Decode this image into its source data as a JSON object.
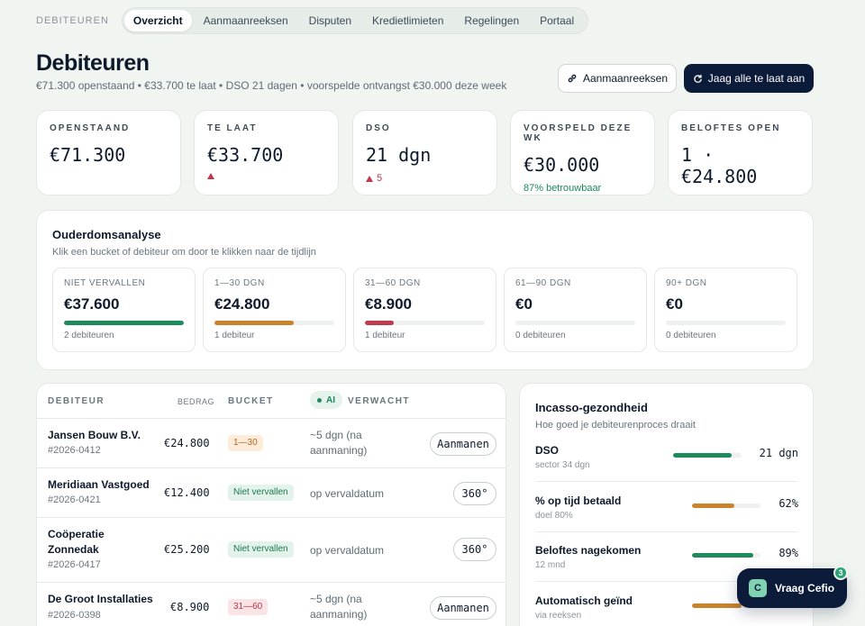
{
  "nav": {
    "crumb": "DEBITEUREN",
    "tabs": [
      {
        "label": "Overzicht",
        "active": true
      },
      {
        "label": "Aanmaanreeksen"
      },
      {
        "label": "Disputen"
      },
      {
        "label": "Kredietlimieten"
      },
      {
        "label": "Regelingen"
      },
      {
        "label": "Portaal"
      }
    ]
  },
  "header": {
    "title": "Debiteuren",
    "subtitle": "€71.300 openstaand • €33.700 te laat • DSO 21 dagen • voorspelde ontvangst €30.000 deze week",
    "btn_sequences": "Aanmaanreeksen",
    "btn_chase": "Jaag alle te laat aan",
    "btn_sequences_icon": "link-icon",
    "btn_chase_icon": "refresh-icon"
  },
  "kpis": [
    {
      "label": "OPENSTAAND",
      "value": "€71.300",
      "sub": ""
    },
    {
      "label": "TE LAAT",
      "value": "€33.700",
      "sub": ""
    },
    {
      "label": "DSO",
      "value": "21 dgn",
      "sub": "5"
    },
    {
      "label": "VOORSPELD DEZE WK",
      "value": "€30.000",
      "sub": "87% betrouwbaar"
    },
    {
      "label": "BELOFTES OPEN",
      "value": "1 · €24.800",
      "sub": ""
    }
  ],
  "aging": {
    "title": "Ouderdomsanalyse",
    "hint": "Klik een bucket of debiteur om door te klikken naar de tijdlijn",
    "buckets": [
      {
        "label": "NIET VERVALLEN",
        "value": "€37.600",
        "count": "2 debiteuren",
        "fill": 1.0,
        "color": "#1f8a5b"
      },
      {
        "label": "1—30 DGN",
        "value": "€24.800",
        "count": "1 debiteur",
        "fill": 0.66,
        "color": "#c9832b"
      },
      {
        "label": "31—60 DGN",
        "value": "€8.900",
        "count": "1 debiteur",
        "fill": 0.24,
        "color": "#c0394c"
      },
      {
        "label": "61—90 DGN",
        "value": "€0",
        "count": "0 debiteuren",
        "fill": 0,
        "color": "#c0394c"
      },
      {
        "label": "90+ DGN",
        "value": "€0",
        "count": "0 debiteuren",
        "fill": 0,
        "color": "#c0394c"
      }
    ]
  },
  "table": {
    "headers": {
      "debtor": "DEBITEUR",
      "amount": "BEDRAG",
      "bucket": "BUCKET",
      "ai": "AI",
      "expected": "VERWACHT"
    },
    "rows": [
      {
        "name": "Jansen Bouw B.V.",
        "id": "#2026-0412",
        "amount": "€24.800",
        "bucket": "1—30",
        "expected": "~5 dgn (na aanmaning)",
        "action": "Aanmanen"
      },
      {
        "name": "Meridiaan Vastgoed",
        "id": "#2026-0421",
        "amount": "€12.400",
        "bucket": "Niet vervallen",
        "expected": "op vervaldatum",
        "action": "360°"
      },
      {
        "name": "Coöperatie Zonnedak",
        "id": "#2026-0417",
        "amount": "€25.200",
        "bucket": "Niet vervallen",
        "expected": "op vervaldatum",
        "action": "360°"
      },
      {
        "name": "De Groot Installaties",
        "id": "#2026-0398",
        "amount": "€8.900",
        "bucket": "31—60",
        "expected": "~5 dgn (na aanmaning)",
        "action": "Aanmanen"
      }
    ]
  },
  "health": {
    "title": "Incasso-gezondheid",
    "hint": "Hoe goed je debiteurenproces draait",
    "rows": [
      {
        "name": "DSO",
        "sub": "sector 34 dgn",
        "value": "21 dgn",
        "fill": 0.85,
        "color": "#1f8a5b"
      },
      {
        "name": "% op tijd betaald",
        "sub": "doel 80%",
        "value": "62%",
        "fill": 0.62,
        "color": "#c9832b"
      },
      {
        "name": "Beloftes nagekomen",
        "sub": "12 mnd",
        "value": "89%",
        "fill": 0.89,
        "color": "#1f8a5b"
      },
      {
        "name": "Automatisch geïnd",
        "sub": "via reeksen",
        "value": "",
        "fill": 0.72,
        "color": "#c9832b"
      }
    ]
  },
  "assistant": {
    "logo": "C",
    "label": "Vraag Cefio",
    "count": "3"
  }
}
